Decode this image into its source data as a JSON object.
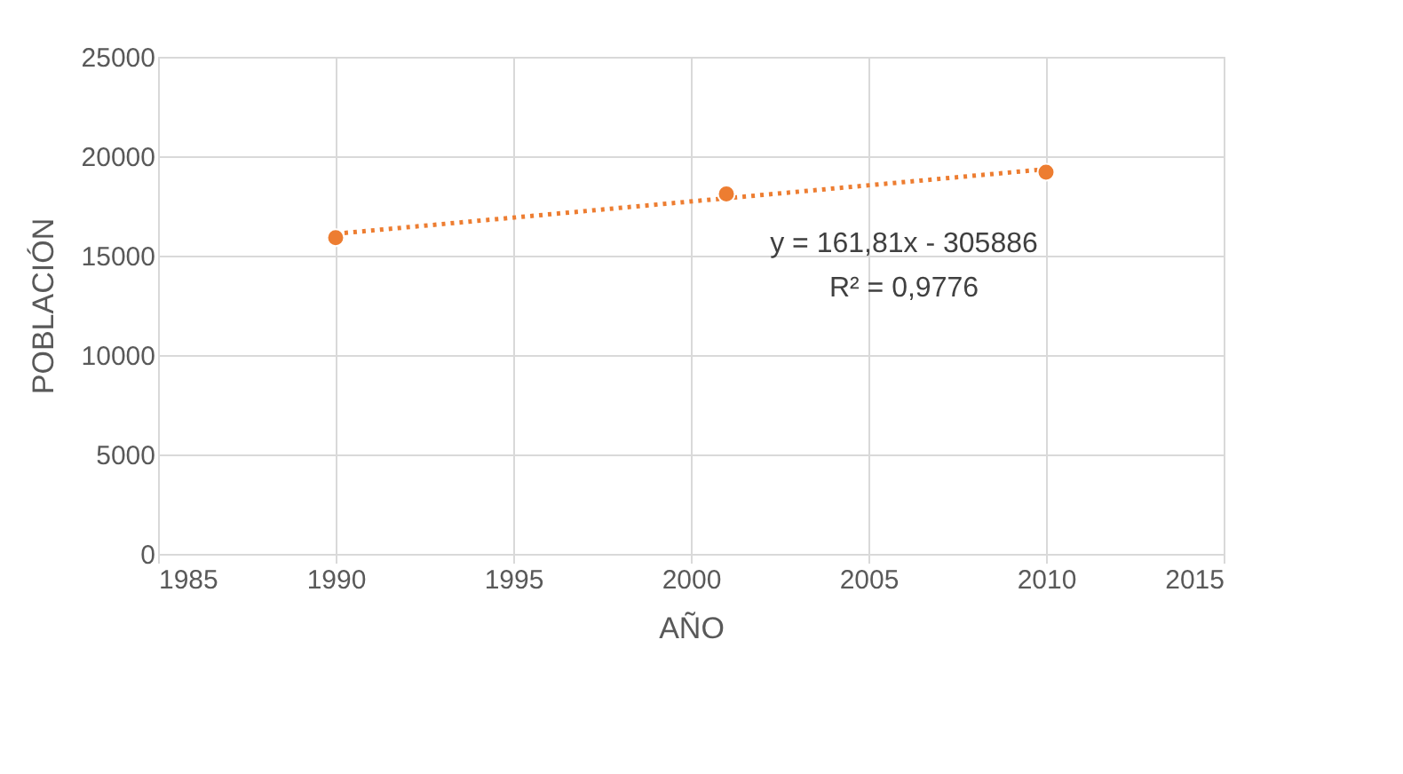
{
  "chart_data": {
    "type": "scatter",
    "xlabel": "AÑO",
    "ylabel": "POBLACIÓN",
    "xlim": [
      1985,
      2015
    ],
    "xticks": [
      1985,
      1990,
      1995,
      2000,
      2005,
      2010,
      2015
    ],
    "ylim": [
      0,
      25000
    ],
    "yticks": [
      0,
      5000,
      10000,
      15000,
      20000,
      25000
    ],
    "grid": true,
    "legend": false,
    "marker": "circle",
    "series": [
      {
        "color": "#ed7d31",
        "x": [
          1990,
          2001,
          2010
        ],
        "values": [
          15900,
          18100,
          19200
        ]
      },
      {
        "type": "line",
        "color": "#ed7d31",
        "line_style": "dotted",
        "marker": "none",
        "x": [
          1990,
          2010
        ],
        "values": [
          16100,
          19350
        ]
      }
    ],
    "annotations": [
      "y = 161,81x - 305886",
      "R² = 0,9776"
    ]
  }
}
